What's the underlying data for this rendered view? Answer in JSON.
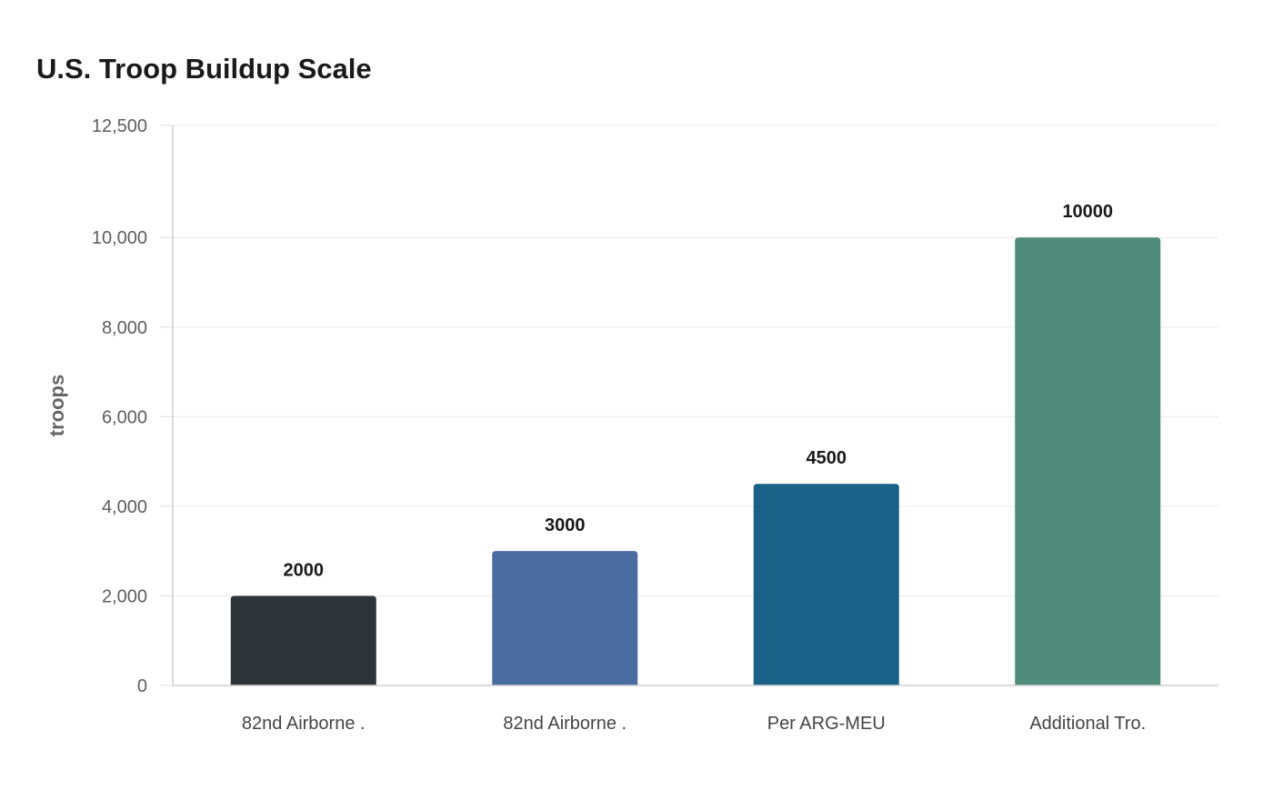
{
  "chart_data": {
    "type": "bar",
    "title": "U.S. Troop Buildup Scale",
    "xlabel": "",
    "ylabel": "troops",
    "categories": [
      "82nd Airborne .",
      "82nd Airborne .",
      "Per ARG-MEU",
      "Additional Tro."
    ],
    "values": [
      2000,
      3000,
      4500,
      10000
    ],
    "data_labels": [
      "2000",
      "3000",
      "4500",
      "10000"
    ],
    "ylim": [
      0,
      12500
    ],
    "yticks": [
      0,
      2000,
      4000,
      6000,
      8000,
      10000,
      12500
    ],
    "ytick_labels": [
      "0",
      "2,000",
      "4,000",
      "6,000",
      "8,000",
      "10,000",
      "12,500"
    ],
    "colors": [
      "#2d3538",
      "#4a6ca0",
      "#1a6187",
      "#4f8c7a"
    ],
    "grid": true,
    "legend": "none"
  }
}
